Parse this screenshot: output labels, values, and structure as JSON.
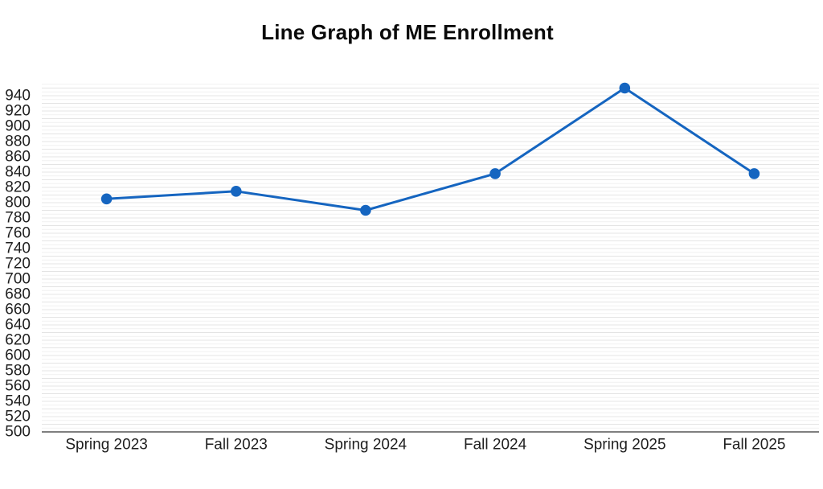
{
  "chart_data": {
    "type": "line",
    "title": "Line Graph of ME Enrollment",
    "categories": [
      "Spring 2023",
      "Fall 2023",
      "Spring 2024",
      "Fall 2024",
      "Spring 2025",
      "Fall 2025"
    ],
    "series": [
      {
        "name": "ME Enrollment",
        "values": [
          805,
          815,
          790,
          838,
          950,
          838
        ]
      }
    ],
    "xlabel": "",
    "ylabel": "",
    "ylim": [
      500,
      955
    ],
    "ytick_labels": [
      "500",
      "520",
      "540",
      "560",
      "580",
      "600",
      "620",
      "640",
      "660",
      "680",
      "700",
      "720",
      "740",
      "760",
      "780",
      "800",
      "820",
      "840",
      "860",
      "880",
      "900",
      "920",
      "940"
    ],
    "ytick_step": 20,
    "minor_gridline_step": 5,
    "grid": "horizontal-only",
    "legend_position": "none",
    "marker": "filled-circle",
    "colors": {
      "line": "#1565c0",
      "marker": "#1565c0",
      "grid_minor": "#f1f1f1",
      "grid_sub": "#e4e4e4",
      "axis_line": "#555555",
      "tick_text": "#1f1f1f",
      "title_text": "#0a0a0a"
    }
  }
}
